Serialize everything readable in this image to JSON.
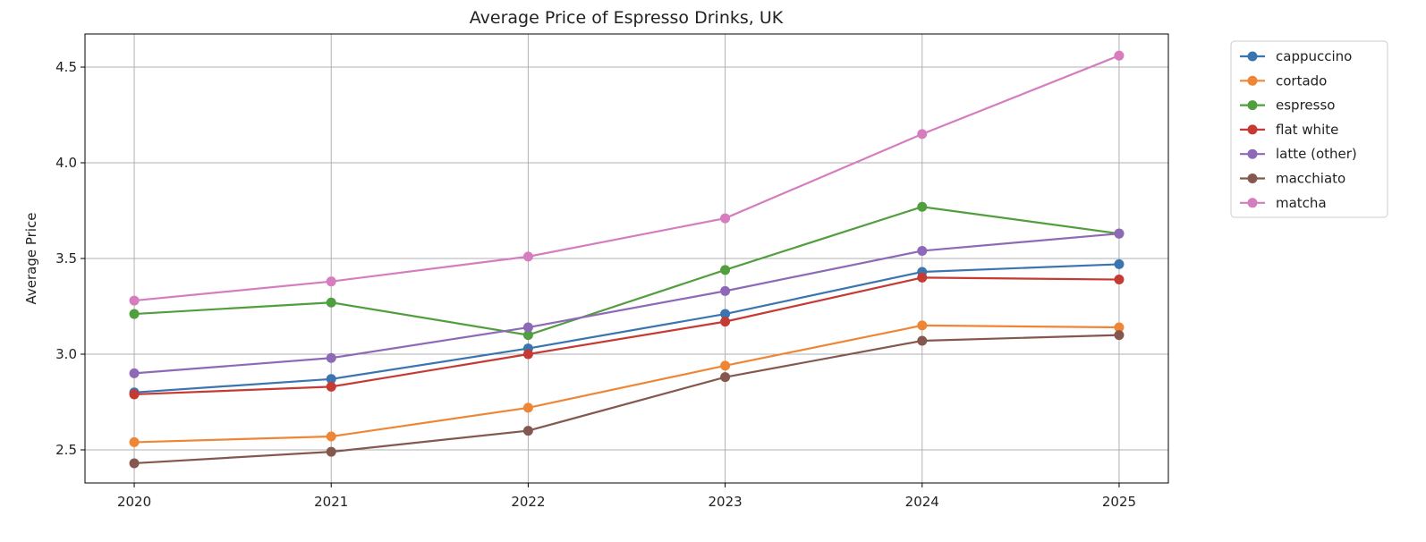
{
  "chart_data": {
    "type": "line",
    "title": "Average Price of Espresso Drinks, UK",
    "xlabel": "",
    "ylabel": "Average Price",
    "x": [
      2020,
      2021,
      2022,
      2023,
      2024,
      2025
    ],
    "xlim": [
      2019.75,
      2025.25
    ],
    "ylim": [
      2.327,
      4.673
    ],
    "yticks": [
      2.5,
      3.0,
      3.5,
      4.0,
      4.5
    ],
    "ytick_labels": [
      "2.5",
      "3.0",
      "3.5",
      "4.0",
      "4.5"
    ],
    "xtick_labels": [
      "2020",
      "2021",
      "2022",
      "2023",
      "2024",
      "2025"
    ],
    "grid": true,
    "legend_position": "outside-top-right",
    "markers": "circle",
    "series": [
      {
        "name": "cappuccino",
        "color": "#3b75af",
        "values": [
          2.8,
          2.87,
          3.03,
          3.21,
          3.43,
          3.47
        ]
      },
      {
        "name": "cortado",
        "color": "#ef8636",
        "values": [
          2.54,
          2.57,
          2.72,
          2.94,
          3.15,
          3.14
        ]
      },
      {
        "name": "espresso",
        "color": "#519e3e",
        "values": [
          3.21,
          3.27,
          3.1,
          3.44,
          3.77,
          3.63
        ]
      },
      {
        "name": "flat white",
        "color": "#c53a32",
        "values": [
          2.79,
          2.83,
          3.0,
          3.17,
          3.4,
          3.39
        ]
      },
      {
        "name": "latte (other)",
        "color": "#8d69b8",
        "values": [
          2.9,
          2.98,
          3.14,
          3.33,
          3.54,
          3.63
        ]
      },
      {
        "name": "macchiato",
        "color": "#84584e",
        "values": [
          2.43,
          2.49,
          2.6,
          2.88,
          3.07,
          3.1
        ]
      },
      {
        "name": "matcha",
        "color": "#d57dbe",
        "values": [
          3.28,
          3.38,
          3.51,
          3.71,
          4.15,
          4.56
        ]
      }
    ]
  }
}
